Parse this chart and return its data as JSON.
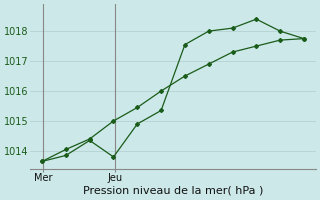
{
  "xlabel": "Pression niveau de la mer( hPa )",
  "bg_color": "#cce8e8",
  "grid_color": "#b8d4d4",
  "line_color": "#1a5c1a",
  "marker_color": "#1a5c1a",
  "ylim": [
    1013.4,
    1018.9
  ],
  "yticks": [
    1014,
    1015,
    1016,
    1017,
    1018
  ],
  "series1_x": [
    0,
    1,
    2,
    3,
    4,
    5,
    6,
    7,
    8,
    9,
    10,
    11
  ],
  "series1_y": [
    1013.65,
    1013.85,
    1014.35,
    1013.8,
    1014.9,
    1015.35,
    1017.55,
    1018.0,
    1018.1,
    1018.4,
    1018.0,
    1017.75
  ],
  "series2_x": [
    0,
    1,
    2,
    3,
    4,
    5,
    6,
    7,
    8,
    9,
    10,
    11
  ],
  "series2_y": [
    1013.65,
    1014.05,
    1014.4,
    1015.0,
    1015.45,
    1016.0,
    1016.5,
    1016.9,
    1017.3,
    1017.5,
    1017.7,
    1017.75
  ],
  "mer_x": 0.05,
  "jeu_x": 3.05,
  "xlim": [
    -0.5,
    11.5
  ],
  "xtick_positions": [
    0.05,
    3.05
  ],
  "xtick_labels": [
    "Mer",
    "Jeu"
  ],
  "xlabel_fontsize": 8,
  "ytick_fontsize": 7,
  "xtick_fontsize": 7
}
